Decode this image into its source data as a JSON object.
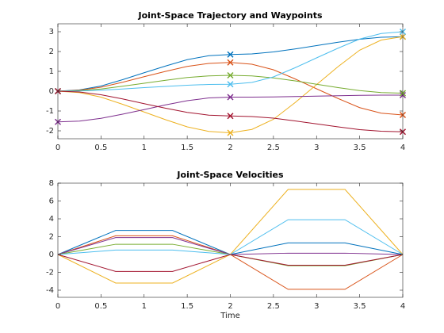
{
  "chart_data": [
    {
      "type": "line",
      "title": "Joint-Space Trajectory and Waypoints",
      "x": [
        0,
        0.25,
        0.5,
        0.75,
        1,
        1.25,
        1.5,
        1.75,
        2,
        2.25,
        2.5,
        2.75,
        3,
        3.25,
        3.5,
        3.75,
        4
      ],
      "series": [
        {
          "color": "#0072BD",
          "values": [
            0,
            0.065,
            0.26,
            0.58,
            0.93,
            1.27,
            1.59,
            1.79,
            1.85,
            1.88,
            1.98,
            2.13,
            2.3,
            2.47,
            2.62,
            2.72,
            2.75
          ]
        },
        {
          "color": "#D95319",
          "values": [
            0,
            0.05,
            0.2,
            0.45,
            0.73,
            1.0,
            1.25,
            1.4,
            1.45,
            1.36,
            1.08,
            0.62,
            0.12,
            -0.37,
            -0.83,
            -1.11,
            -1.2
          ]
        },
        {
          "color": "#EDB120",
          "values": [
            0,
            -0.07,
            -0.3,
            -0.66,
            -1.05,
            -1.44,
            -1.8,
            -2.03,
            -2.1,
            -1.93,
            -1.42,
            -0.58,
            0.33,
            1.24,
            2.07,
            2.58,
            2.75
          ]
        },
        {
          "color": "#7E2F8E",
          "values": [
            -1.55,
            -1.51,
            -1.37,
            -1.16,
            -0.93,
            -0.69,
            -0.48,
            -0.34,
            -0.3,
            -0.3,
            -0.29,
            -0.27,
            -0.25,
            -0.23,
            -0.21,
            -0.2,
            -0.2
          ]
        },
        {
          "color": "#77AC30",
          "values": [
            0,
            0.03,
            0.11,
            0.25,
            0.4,
            0.55,
            0.69,
            0.77,
            0.8,
            0.77,
            0.67,
            0.52,
            0.35,
            0.18,
            0.03,
            -0.07,
            -0.1
          ]
        },
        {
          "color": "#4DBEEE",
          "values": [
            0,
            0.01,
            0.05,
            0.11,
            0.18,
            0.24,
            0.3,
            0.34,
            0.35,
            0.44,
            0.72,
            1.18,
            1.68,
            2.17,
            2.63,
            2.91,
            3.0
          ]
        },
        {
          "color": "#A2142F",
          "values": [
            0,
            -0.04,
            -0.18,
            -0.39,
            -0.63,
            -0.86,
            -1.07,
            -1.21,
            -1.25,
            -1.28,
            -1.36,
            -1.5,
            -1.65,
            -1.8,
            -1.94,
            -2.02,
            -2.05
          ]
        }
      ],
      "waypoints": {
        "marker": "x",
        "x": [
          0,
          2,
          4
        ],
        "series": [
          {
            "color": "#0072BD",
            "values": [
              0,
              1.85,
              2.75
            ]
          },
          {
            "color": "#D95319",
            "values": [
              0,
              1.45,
              -1.2
            ]
          },
          {
            "color": "#EDB120",
            "values": [
              0,
              -2.1,
              2.75
            ]
          },
          {
            "color": "#7E2F8E",
            "values": [
              -1.55,
              -0.3,
              -0.2
            ]
          },
          {
            "color": "#77AC30",
            "values": [
              0,
              0.8,
              -0.1
            ]
          },
          {
            "color": "#4DBEEE",
            "values": [
              0,
              0.35,
              3.0
            ]
          },
          {
            "color": "#A2142F",
            "values": [
              0,
              -1.25,
              -2.05
            ]
          }
        ]
      },
      "xlim": [
        0,
        4
      ],
      "ylim": [
        -2.4,
        3.4
      ],
      "xticks": [
        0,
        0.5,
        1,
        1.5,
        2,
        2.5,
        3,
        3.5,
        4
      ],
      "yticks": [
        -2,
        -1,
        0,
        1,
        2,
        3
      ]
    },
    {
      "type": "line",
      "title": "Joint-Space Velocities",
      "xlabel": "Time",
      "x": [
        0,
        0.67,
        1.33,
        2,
        2.67,
        3.33,
        4
      ],
      "series": [
        {
          "color": "#0072BD",
          "values": [
            0,
            2.7,
            2.7,
            0,
            1.3,
            1.3,
            0
          ]
        },
        {
          "color": "#D95319",
          "values": [
            0,
            2.1,
            2.1,
            0,
            -3.9,
            -3.9,
            0
          ]
        },
        {
          "color": "#EDB120",
          "values": [
            0,
            -3.2,
            -3.2,
            0,
            7.3,
            7.3,
            0
          ]
        },
        {
          "color": "#7E2F8E",
          "values": [
            0,
            1.9,
            1.9,
            0,
            0.15,
            0.15,
            0
          ]
        },
        {
          "color": "#77AC30",
          "values": [
            0,
            1.15,
            1.15,
            0,
            -1.25,
            -1.25,
            0
          ]
        },
        {
          "color": "#4DBEEE",
          "values": [
            0,
            0.5,
            0.5,
            0,
            3.9,
            3.9,
            0
          ]
        },
        {
          "color": "#A2142F",
          "values": [
            0,
            -1.9,
            -1.9,
            0,
            -1.2,
            -1.2,
            0
          ]
        }
      ],
      "xlim": [
        0,
        4
      ],
      "ylim": [
        -4.8,
        8
      ],
      "xticks": [
        0,
        0.5,
        1,
        1.5,
        2,
        2.5,
        3,
        3.5,
        4
      ],
      "yticks": [
        -4,
        -2,
        0,
        2,
        4,
        6,
        8
      ]
    }
  ]
}
